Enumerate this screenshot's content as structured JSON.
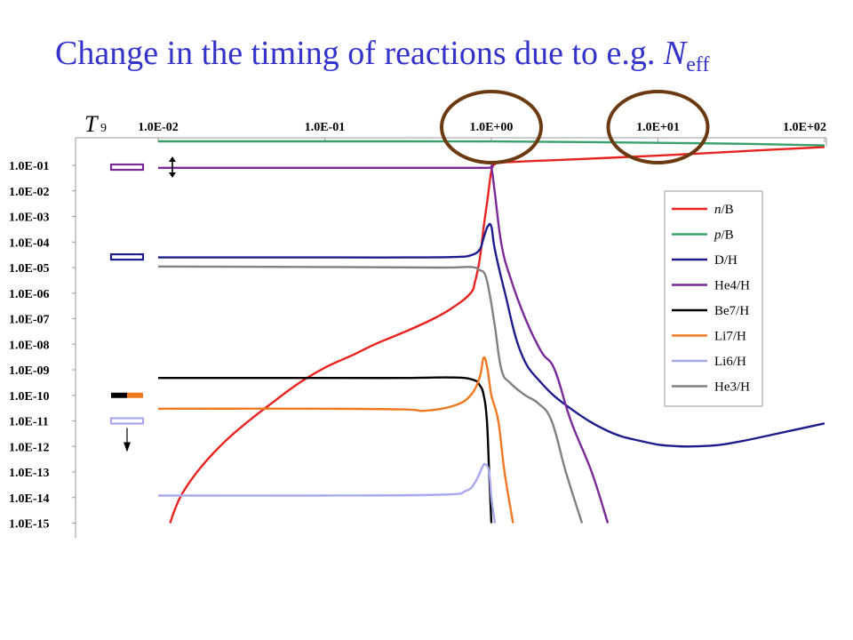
{
  "slide": {
    "title_text": "Change in the timing of reactions due to e.g. ",
    "title_var": "N",
    "title_sub": "eff"
  },
  "chart_data": {
    "type": "line",
    "title": "",
    "xlabel": "T",
    "xlabel_sub": "9",
    "ylabel": "",
    "x_scale": "log",
    "y_scale": "log",
    "x_axis_position": "top",
    "x_reversed": true,
    "xlim": [
      100,
      0.01
    ],
    "ylim": [
      1e-15,
      1
    ],
    "x_ticks": [
      {
        "value": 0.01,
        "label": "1.0E-02"
      },
      {
        "value": 0.1,
        "label": "1.0E-01"
      },
      {
        "value": 1,
        "label": "1.0E+00"
      },
      {
        "value": 10,
        "label": "1.0E+01"
      },
      {
        "value": 100,
        "label": "1.0E+02"
      }
    ],
    "y_ticks": [
      {
        "value": 0.1,
        "label": "1.0E-01"
      },
      {
        "value": 0.01,
        "label": "1.0E-02"
      },
      {
        "value": 0.001,
        "label": "1.0E-03"
      },
      {
        "value": 0.0001,
        "label": "1.0E-04"
      },
      {
        "value": 1e-05,
        "label": "1.0E-05"
      },
      {
        "value": 1e-06,
        "label": "1.0E-06"
      },
      {
        "value": 1e-07,
        "label": "1.0E-07"
      },
      {
        "value": 1e-08,
        "label": "1.0E-08"
      },
      {
        "value": 1e-09,
        "label": "1.0E-09"
      },
      {
        "value": 1e-10,
        "label": "1.0E-10"
      },
      {
        "value": 1e-11,
        "label": "1.0E-11"
      },
      {
        "value": 1e-12,
        "label": "1.0E-12"
      },
      {
        "value": 1e-13,
        "label": "1.0E-13"
      },
      {
        "value": 1e-14,
        "label": "1.0E-14"
      },
      {
        "value": 1e-15,
        "label": "1.0E-15"
      }
    ],
    "grid": false,
    "legend_position": "right",
    "series": [
      {
        "name": "n/B",
        "name_italic": "n",
        "name_rest": "/B",
        "color": "#e8221e",
        "points": [
          [
            100,
            0.52
          ],
          [
            30,
            0.35
          ],
          [
            10,
            0.24
          ],
          [
            3,
            0.17
          ],
          [
            1.2,
            0.13
          ],
          [
            1.05,
            0.11
          ],
          [
            1.0,
            0.06
          ],
          [
            0.95,
            0.005
          ],
          [
            0.9,
            0.0004
          ],
          [
            0.85,
            2e-05
          ],
          [
            0.8,
            3e-06
          ],
          [
            0.75,
            1e-06
          ],
          [
            0.6,
            3e-07
          ],
          [
            0.45,
            1e-07
          ],
          [
            0.3,
            3e-08
          ],
          [
            0.2,
            1e-08
          ],
          [
            0.15,
            4e-09
          ],
          [
            0.1,
            1.2e-09
          ],
          [
            0.07,
            3e-10
          ],
          [
            0.05,
            6e-11
          ],
          [
            0.035,
            1e-11
          ],
          [
            0.025,
            1.5e-12
          ],
          [
            0.018,
            1.5e-13
          ],
          [
            0.014,
            1.5e-14
          ],
          [
            0.0125,
            3e-15
          ],
          [
            0.0118,
            1e-15
          ]
        ]
      },
      {
        "name": "p/B",
        "name_italic": "p",
        "name_rest": "/B",
        "color": "#3aa06a",
        "points": [
          [
            100,
            0.6
          ],
          [
            30,
            0.7
          ],
          [
            10,
            0.76
          ],
          [
            3,
            0.82
          ],
          [
            1,
            0.86
          ],
          [
            0.8,
            0.86
          ],
          [
            0.3,
            0.87
          ],
          [
            0.1,
            0.87
          ],
          [
            0.01,
            0.87
          ]
        ]
      },
      {
        "name": "D/H",
        "name_italic": "",
        "name_rest": "D/H",
        "color": "#1c1c8c",
        "points": [
          [
            100,
            8e-12
          ],
          [
            50,
            3e-12
          ],
          [
            30,
            1.5e-12
          ],
          [
            20,
            1.05e-12
          ],
          [
            12,
            1.05e-12
          ],
          [
            8,
            1.6e-12
          ],
          [
            5,
            4e-12
          ],
          [
            3,
            3e-11
          ],
          [
            2,
            3e-10
          ],
          [
            1.5,
            5e-09
          ],
          [
            1.2,
            1.2e-06
          ],
          [
            1.05,
            5e-05
          ],
          [
            1.0,
            0.0004
          ],
          [
            0.95,
            0.0004
          ],
          [
            0.9,
            0.00015
          ],
          [
            0.85,
            5e-05
          ],
          [
            0.75,
            3e-05
          ],
          [
            0.6,
            2.6e-05
          ],
          [
            0.3,
            2.5e-05
          ],
          [
            0.1,
            2.5e-05
          ],
          [
            0.01,
            2.5e-05
          ]
        ]
      },
      {
        "name": "He4/H",
        "name_italic": "",
        "name_rest": "He4/H",
        "color": "#7a2a96",
        "points": [
          [
            5,
            1e-15
          ],
          [
            4,
            1e-13
          ],
          [
            3,
            1e-11
          ],
          [
            2.4,
            1e-09
          ],
          [
            2,
            5e-09
          ],
          [
            1.6,
            1e-07
          ],
          [
            1.3,
            4e-06
          ],
          [
            1.15,
            8e-05
          ],
          [
            1.05,
            0.008
          ],
          [
            1.0,
            0.08
          ],
          [
            0.95,
            0.08
          ],
          [
            0.5,
            0.08
          ],
          [
            0.1,
            0.08
          ],
          [
            0.01,
            0.08
          ]
        ]
      },
      {
        "name": "Be7/H",
        "name_italic": "",
        "name_rest": "Be7/H",
        "color": "#000000",
        "points": [
          [
            1.0,
            1e-15
          ],
          [
            0.97,
            1e-13
          ],
          [
            0.94,
            1e-11
          ],
          [
            0.9,
            1e-10
          ],
          [
            0.85,
            2.5e-10
          ],
          [
            0.78,
            4e-10
          ],
          [
            0.6,
            5e-10
          ],
          [
            0.3,
            4.8e-10
          ],
          [
            0.1,
            4.8e-10
          ],
          [
            0.01,
            4.8e-10
          ]
        ]
      },
      {
        "name": "Li7/H",
        "name_italic": "",
        "name_rest": "Li7/H",
        "color": "#f07820",
        "points": [
          [
            1.35,
            1e-15
          ],
          [
            1.2,
            1e-13
          ],
          [
            1.1,
            1e-11
          ],
          [
            1.0,
            1e-10
          ],
          [
            0.95,
            1e-09
          ],
          [
            0.9,
            3e-09
          ],
          [
            0.85,
            5e-10
          ],
          [
            0.75,
            1e-10
          ],
          [
            0.6,
            4e-11
          ],
          [
            0.4,
            2.5e-11
          ],
          [
            0.3,
            2.8e-11
          ],
          [
            0.1,
            3e-11
          ],
          [
            0.01,
            3e-11
          ]
        ]
      },
      {
        "name": "Li6/H",
        "name_italic": "",
        "name_rest": "Li6/H",
        "color": "#a8a8ee",
        "points": [
          [
            1.05,
            1e-15
          ],
          [
            1.0,
            1e-14
          ],
          [
            0.97,
            1e-13
          ],
          [
            0.92,
            2e-13
          ],
          [
            0.88,
            1.5e-13
          ],
          [
            0.8,
            4e-14
          ],
          [
            0.7,
            1.8e-14
          ],
          [
            0.5,
            1.3e-14
          ],
          [
            0.1,
            1.2e-14
          ],
          [
            0.01,
            1.2e-14
          ]
        ]
      },
      {
        "name": "He3/H",
        "name_italic": "",
        "name_rest": "He3/H",
        "color": "#808080",
        "points": [
          [
            3.5,
            1e-15
          ],
          [
            2.8,
            1e-13
          ],
          [
            2.3,
            1e-11
          ],
          [
            1.9,
            5e-11
          ],
          [
            1.6,
            1e-10
          ],
          [
            1.3,
            3e-10
          ],
          [
            1.15,
            1e-09
          ],
          [
            1.05,
            5e-08
          ],
          [
            0.98,
            8e-07
          ],
          [
            0.92,
            5e-06
          ],
          [
            0.85,
            8e-06
          ],
          [
            0.75,
            1.05e-05
          ],
          [
            0.5,
            1e-05
          ],
          [
            0.1,
            1.05e-05
          ],
          [
            0.01,
            1.1e-05
          ]
        ]
      }
    ],
    "observation_markers": [
      {
        "name": "He4/H",
        "y": 0.085,
        "color": "#7a2a96"
      },
      {
        "name": "D/H",
        "y": 2.6e-05,
        "color": "#1c1c8c"
      },
      {
        "name": "Be7/H + Li7/H",
        "y": 1e-10,
        "color": "#000000",
        "color2": "#f07820"
      },
      {
        "name": "Li6/H",
        "y": 1e-11,
        "color": "#a8a8ee"
      }
    ],
    "highlight_circles": [
      {
        "x": 1,
        "label": "1.0E+00",
        "color": "#6b3a10"
      },
      {
        "x": 10,
        "label": "1.0E+01",
        "color": "#6b3a10"
      }
    ]
  }
}
